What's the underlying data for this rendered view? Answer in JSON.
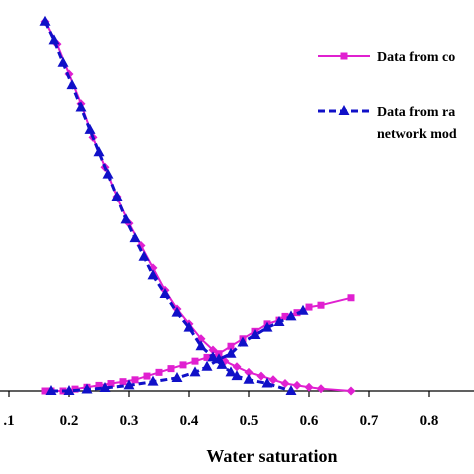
{
  "chart_data": {
    "type": "line",
    "xlabel": "Water saturation",
    "ylabel": "",
    "xlim": [
      0.085,
      0.875
    ],
    "ylim": [
      0,
      1
    ],
    "x_ticks": [
      0.1,
      0.2,
      0.3,
      0.4,
      0.5,
      0.6,
      0.7,
      0.8
    ],
    "x_tick_labels": [
      ".1",
      "0.2",
      "0.3",
      "0.4",
      "0.5",
      "0.6",
      "0.7",
      "0.8"
    ],
    "grid": false,
    "legend_position": "top-right",
    "colors": {
      "core": "#e020d0",
      "network": "#1010c8"
    },
    "series": [
      {
        "name": "Data from co",
        "marker": "square",
        "color": "#e020d0",
        "x": [
          0.16,
          0.17,
          0.19,
          0.21,
          0.23,
          0.25,
          0.27,
          0.29,
          0.31,
          0.33,
          0.35,
          0.37,
          0.39,
          0.41,
          0.43,
          0.45,
          0.47,
          0.49,
          0.51,
          0.53,
          0.55,
          0.56,
          0.58,
          0.6,
          0.62,
          0.67
        ],
        "y": [
          0.0,
          0.0,
          0.0,
          0.005,
          0.01,
          0.015,
          0.02,
          0.025,
          0.03,
          0.04,
          0.05,
          0.06,
          0.07,
          0.08,
          0.09,
          0.1,
          0.12,
          0.14,
          0.16,
          0.18,
          0.19,
          0.2,
          0.21,
          0.225,
          0.23,
          0.25
        ]
      },
      {
        "name": "Data from co",
        "marker": "diamond",
        "color": "#e020d0",
        "x": [
          0.16,
          0.18,
          0.2,
          0.22,
          0.24,
          0.26,
          0.28,
          0.3,
          0.32,
          0.34,
          0.36,
          0.38,
          0.4,
          0.42,
          0.44,
          0.46,
          0.48,
          0.5,
          0.52,
          0.54,
          0.56,
          0.58,
          0.6,
          0.62,
          0.67
        ],
        "y": [
          0.99,
          0.93,
          0.85,
          0.77,
          0.68,
          0.6,
          0.52,
          0.45,
          0.39,
          0.33,
          0.27,
          0.22,
          0.18,
          0.14,
          0.11,
          0.08,
          0.065,
          0.05,
          0.04,
          0.03,
          0.02,
          0.015,
          0.01,
          0.006,
          0.0
        ]
      },
      {
        "name": "Data from ra",
        "marker": "triangle",
        "color": "#1010c8",
        "x": [
          0.16,
          0.175,
          0.19,
          0.205,
          0.22,
          0.235,
          0.25,
          0.265,
          0.28,
          0.295,
          0.31,
          0.325,
          0.34,
          0.36,
          0.38,
          0.4,
          0.42,
          0.44,
          0.455,
          0.47,
          0.48,
          0.5,
          0.53,
          0.57
        ],
        "y": [
          0.99,
          0.94,
          0.88,
          0.82,
          0.76,
          0.7,
          0.64,
          0.58,
          0.52,
          0.46,
          0.41,
          0.36,
          0.31,
          0.26,
          0.21,
          0.17,
          0.12,
          0.09,
          0.07,
          0.05,
          0.04,
          0.03,
          0.02,
          0.0
        ]
      },
      {
        "name": "Data from ra",
        "marker": "triangle",
        "color": "#1010c8",
        "x": [
          0.17,
          0.2,
          0.23,
          0.26,
          0.3,
          0.34,
          0.38,
          0.41,
          0.43,
          0.45,
          0.47,
          0.49,
          0.51,
          0.53,
          0.55,
          0.57,
          0.59
        ],
        "y": [
          0.0,
          0.0,
          0.004,
          0.008,
          0.015,
          0.025,
          0.035,
          0.05,
          0.065,
          0.085,
          0.1,
          0.13,
          0.15,
          0.17,
          0.185,
          0.2,
          0.215
        ]
      }
    ],
    "legend": [
      {
        "lines": [
          "Data from co"
        ],
        "marker": "square",
        "color": "#e020d0",
        "dashed": false
      },
      {
        "lines": [
          "Data from ra",
          "network mod"
        ],
        "marker": "triangle",
        "color": "#1010c8",
        "dashed": true
      }
    ]
  }
}
